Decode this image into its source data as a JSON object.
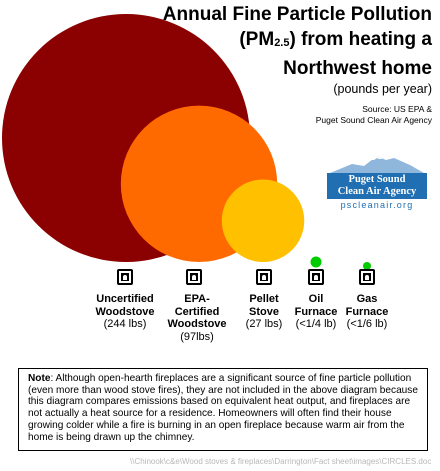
{
  "header": {
    "title_line1": "Annual Fine Particle Pollution",
    "title_line2_prefix": "(PM",
    "title_line2_sub": "2.5",
    "title_line2_suffix": ") from heating a",
    "title_line3": "Northwest home",
    "subtitle": "(pounds per year)",
    "source_line1": "Source: US EPA &",
    "source_line2": "Puget Sound Clean Air Agency"
  },
  "logo": {
    "line1": "Puget Sound",
    "line2": "Clean Air Agency",
    "url": "pscleanair.org"
  },
  "chart_data": {
    "type": "bubble",
    "title": "Annual Fine Particle Pollution (PM2.5) from heating a Northwest home",
    "unit": "pounds per year",
    "categories": [
      {
        "name_lines": [
          "Uncertified",
          "Woodstove"
        ],
        "value_label": "(244 lbs)",
        "value": 244,
        "color": "#8b0000"
      },
      {
        "name_lines": [
          "EPA-",
          "Certified",
          "Woodstove"
        ],
        "value_label": "(97lbs)",
        "value": 97,
        "color": "#ff6a00"
      },
      {
        "name_lines": [
          "Pellet",
          "Stove"
        ],
        "value_label": "(27 lbs)",
        "value": 27,
        "color": "#ffc000"
      },
      {
        "name_lines": [
          "Oil",
          "Furnace"
        ],
        "value_label": "(<1/4 lb)",
        "value": 0.25,
        "color": "#00cc00"
      },
      {
        "name_lines": [
          "Gas",
          "Furnace"
        ],
        "value_label": "(<1/6 lb)",
        "value": 0.1667,
        "color": "#00cc00"
      }
    ]
  },
  "note": {
    "heading": "Note",
    "text": ": Although open-hearth fireplaces are a significant source of fine particle pollution (even more than wood stove fires), they are not included in the above diagram because this diagram compares emissions based on equivalent heat output, and fireplaces are not actually a heat source for a residence.  Homeowners will often find their house growing colder while a fire is burning in an open fireplace because warm air from the home is being drawn up the chimney."
  },
  "footer": "\\\\Chinook\\c&e\\Wood stoves & fireplaces\\Darrington\\Fact sheet\\images\\CIRCLES.doc"
}
